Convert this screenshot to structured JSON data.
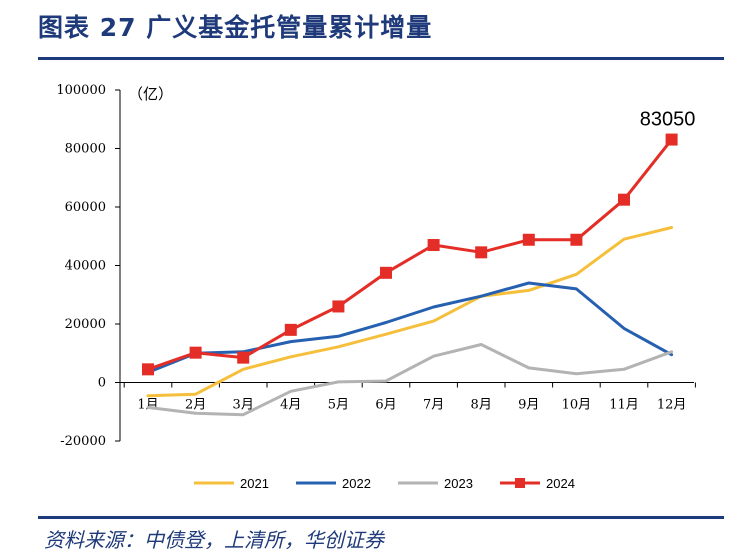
{
  "figure": {
    "title": "图表 27    广义基金托管量累计增量",
    "source": "资料来源：中债登，上清所，华创证券"
  },
  "chart_data": {
    "type": "line",
    "unit_label": "（亿）",
    "categories": [
      "1月",
      "2月",
      "3月",
      "4月",
      "5月",
      "6月",
      "7月",
      "8月",
      "9月",
      "10月",
      "11月",
      "12月"
    ],
    "ylim": [
      -20000,
      100000
    ],
    "yticks": [
      -20000,
      0,
      20000,
      40000,
      60000,
      80000,
      100000
    ],
    "grid": false,
    "legend_position": "bottom",
    "series": [
      {
        "name": "2021",
        "color": "#f5bf3c",
        "marker": "none",
        "values": [
          -4500,
          -4000,
          4500,
          8800,
          12200,
          16500,
          21000,
          29500,
          31500,
          37000,
          49000,
          53000
        ]
      },
      {
        "name": "2022",
        "color": "#2660b0",
        "marker": "none",
        "values": [
          3500,
          10000,
          10500,
          14000,
          15800,
          20500,
          25800,
          29500,
          34000,
          32000,
          18500,
          9500
        ]
      },
      {
        "name": "2023",
        "color": "#b3b3b3",
        "marker": "none",
        "values": [
          -8500,
          -10500,
          -11000,
          -3000,
          200,
          500,
          9000,
          13000,
          5000,
          3000,
          4500,
          10500
        ]
      },
      {
        "name": "2024",
        "color": "#e42d26",
        "marker": "square",
        "values": [
          4500,
          10200,
          8500,
          18000,
          26000,
          37500,
          47000,
          44500,
          48800,
          48800,
          62500,
          83050
        ]
      }
    ],
    "annotations": [
      {
        "series": "2024",
        "index": 11,
        "text": "83050"
      }
    ]
  }
}
